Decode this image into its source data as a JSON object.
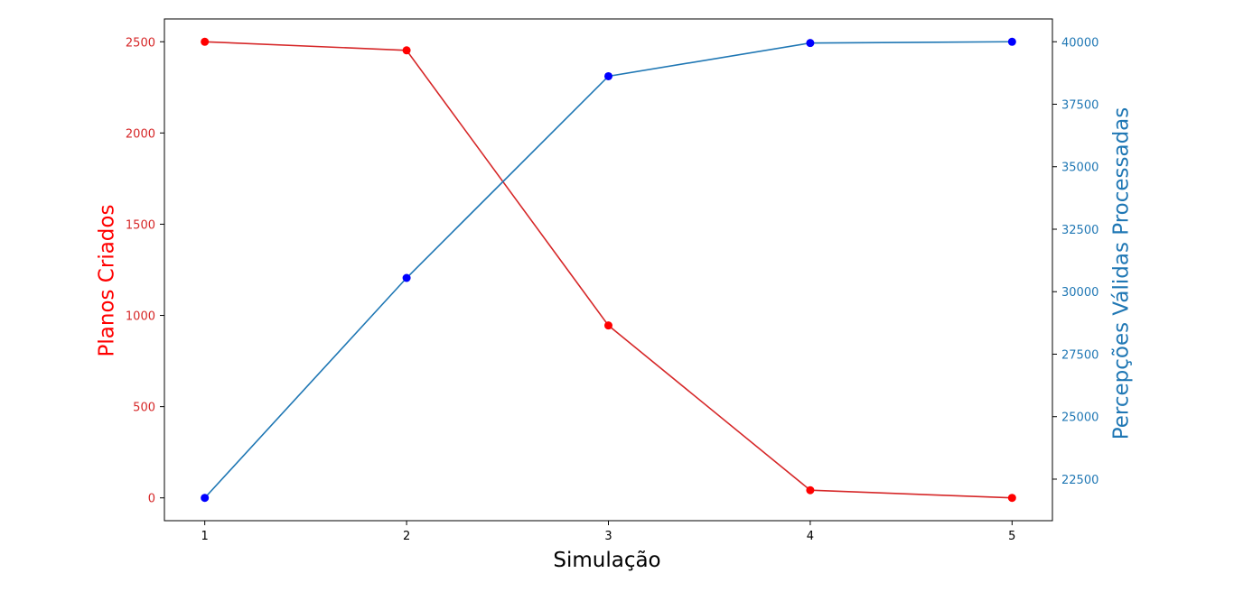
{
  "chart_data": {
    "type": "line",
    "x": [
      1,
      2,
      3,
      4,
      5
    ],
    "xlabel": "Simulação",
    "x_ticks": [
      "1",
      "2",
      "3",
      "4",
      "5"
    ],
    "xlim": [
      0.8,
      5.2
    ],
    "grid": false,
    "series": [
      {
        "name": "",
        "axis": "left",
        "values": [
          2500,
          2453,
          945,
          42,
          0
        ],
        "line_color": "#d62728",
        "marker_color": "#ff0000"
      },
      {
        "name": "",
        "axis": "right",
        "values": [
          21750,
          30550,
          38620,
          39950,
          40000
        ],
        "line_color": "#1f77b4",
        "marker_color": "#0000ff"
      }
    ],
    "y_left": {
      "label": "Planos Criados",
      "label_color": "#ff0000",
      "tick_color": "#d62728",
      "ylim": [
        -125,
        2625
      ],
      "ticks": [
        "0",
        "500",
        "1000",
        "1500",
        "2000",
        "2500"
      ]
    },
    "y_right": {
      "label": "Percepções Válidas Processadas",
      "label_color": "#1f77b4",
      "tick_color": "#1f77b4",
      "ylim": [
        20838,
        40912
      ],
      "ticks": [
        "22500",
        "25000",
        "27500",
        "30000",
        "32500",
        "35000",
        "37500",
        "40000"
      ]
    }
  }
}
